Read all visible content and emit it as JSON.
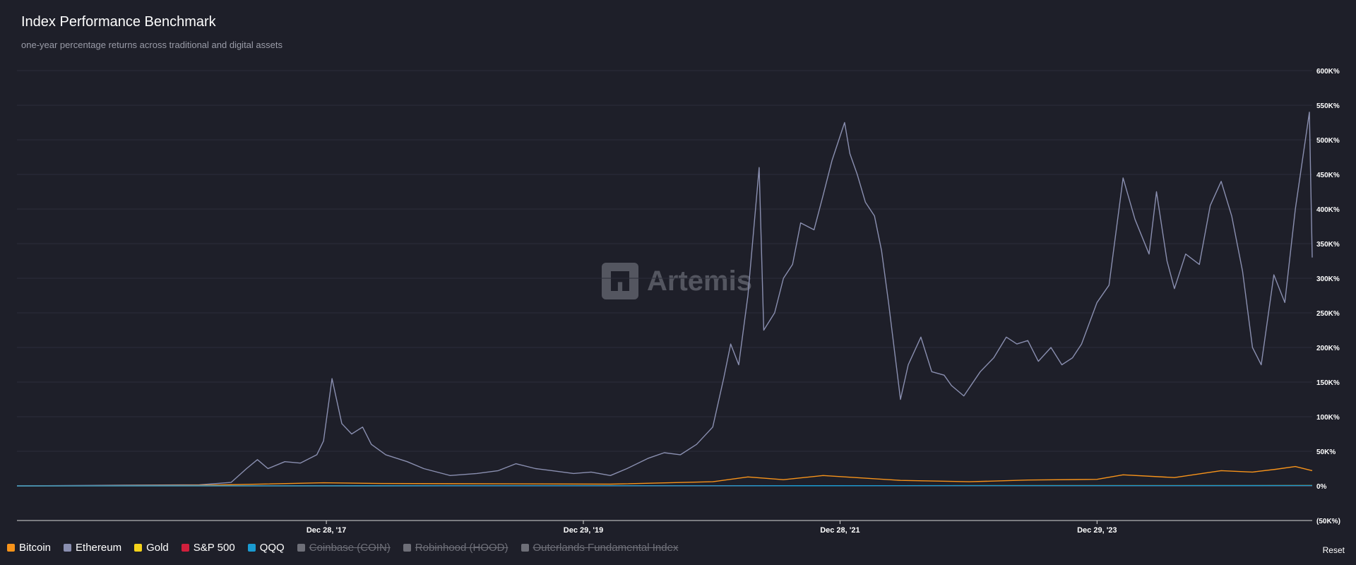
{
  "header": {
    "title": "Index Performance Benchmark",
    "subtitle": "one-year percentage returns across traditional and digital assets"
  },
  "watermark": {
    "text": "Artemis",
    "icon": "artemis-logo-icon"
  },
  "reset_label": "Reset",
  "legend": [
    {
      "label": "Bitcoin",
      "color": "#f7931a",
      "enabled": true
    },
    {
      "label": "Ethereum",
      "color": "#8a8fb0",
      "enabled": true
    },
    {
      "label": "Gold",
      "color": "#f5d31a",
      "enabled": true
    },
    {
      "label": "S&P 500",
      "color": "#d01f3c",
      "enabled": true
    },
    {
      "label": "QQQ",
      "color": "#1a9bd1",
      "enabled": true
    },
    {
      "label": "Coinbase (COIN)",
      "color": "#6e6f78",
      "enabled": false
    },
    {
      "label": "Robinhood (HOOD)",
      "color": "#6e6f78",
      "enabled": false
    },
    {
      "label": "Outerlands Fundamental Index",
      "color": "#6e6f78",
      "enabled": false
    }
  ],
  "chart_data": {
    "type": "line",
    "title": "Index Performance Benchmark",
    "subtitle": "one-year percentage returns across traditional and digital assets",
    "xlabel": "",
    "ylabel": "",
    "x_ticks": [
      "Dec 28, '17",
      "Dec 29, '19",
      "Dec 28, '21",
      "Dec 29, '23"
    ],
    "x_tick_dates": [
      "2017-12-28",
      "2019-12-29",
      "2021-12-28",
      "2023-12-29"
    ],
    "x_range": [
      "2015-08-01",
      "2025-09-01"
    ],
    "y_ticks": [
      "(50K%)",
      "0%",
      "50K%",
      "100K%",
      "150K%",
      "200K%",
      "250K%",
      "300K%",
      "350K%",
      "400K%",
      "450K%",
      "500K%",
      "550K%",
      "600K%"
    ],
    "ylim": [
      -50000,
      600000
    ],
    "grid": true,
    "legend_position": "bottom-left",
    "series": [
      {
        "name": "Ethereum",
        "color": "#8a8fb0",
        "x": [
          "2015-08-01",
          "2016-06-01",
          "2017-01-01",
          "2017-04-01",
          "2017-05-15",
          "2017-06-15",
          "2017-07-15",
          "2017-09-01",
          "2017-10-15",
          "2017-12-01",
          "2017-12-20",
          "2018-01-13",
          "2018-02-10",
          "2018-03-10",
          "2018-04-10",
          "2018-05-05",
          "2018-06-15",
          "2018-08-15",
          "2018-10-01",
          "2018-12-15",
          "2019-03-01",
          "2019-05-01",
          "2019-06-20",
          "2019-08-15",
          "2019-10-01",
          "2019-12-01",
          "2020-01-20",
          "2020-03-15",
          "2020-05-01",
          "2020-07-01",
          "2020-08-15",
          "2020-09-30",
          "2020-11-15",
          "2020-12-31",
          "2021-01-31",
          "2021-02-20",
          "2021-03-15",
          "2021-04-10",
          "2021-05-12",
          "2021-05-25",
          "2021-06-25",
          "2021-07-20",
          "2021-08-15",
          "2021-09-07",
          "2021-10-15",
          "2021-11-10",
          "2021-12-05",
          "2022-01-10",
          "2022-01-25",
          "2022-02-15",
          "2022-03-10",
          "2022-04-05",
          "2022-04-25",
          "2022-05-15",
          "2022-06-18",
          "2022-07-10",
          "2022-08-15",
          "2022-09-15",
          "2022-10-20",
          "2022-11-10",
          "2022-12-15",
          "2023-01-31",
          "2023-03-10",
          "2023-04-15",
          "2023-05-15",
          "2023-06-15",
          "2023-07-15",
          "2023-08-20",
          "2023-09-20",
          "2023-10-20",
          "2023-11-15",
          "2023-12-29",
          "2024-02-01",
          "2024-03-12",
          "2024-04-15",
          "2024-05-25",
          "2024-06-15",
          "2024-07-15",
          "2024-08-05",
          "2024-09-06",
          "2024-10-15",
          "2024-11-15",
          "2024-12-16",
          "2025-01-15",
          "2025-02-15",
          "2025-03-15",
          "2025-04-09",
          "2025-05-15",
          "2025-06-15",
          "2025-07-15",
          "2025-08-24",
          "2025-09-01"
        ],
        "values": [
          0,
          1000,
          1500,
          5000,
          25000,
          38000,
          25000,
          35000,
          33000,
          45000,
          65000,
          155000,
          90000,
          75000,
          85000,
          60000,
          45000,
          35000,
          25000,
          15000,
          18000,
          22000,
          32000,
          25000,
          22000,
          18000,
          20000,
          15000,
          25000,
          40000,
          48000,
          45000,
          60000,
          85000,
          155000,
          205000,
          175000,
          275000,
          460000,
          225000,
          250000,
          300000,
          320000,
          380000,
          370000,
          420000,
          470000,
          525000,
          480000,
          450000,
          410000,
          390000,
          340000,
          265000,
          125000,
          175000,
          215000,
          165000,
          160000,
          145000,
          130000,
          165000,
          185000,
          215000,
          205000,
          210000,
          180000,
          200000,
          175000,
          185000,
          205000,
          265000,
          290000,
          445000,
          385000,
          335000,
          425000,
          325000,
          285000,
          335000,
          320000,
          405000,
          440000,
          390000,
          310000,
          200000,
          175000,
          305000,
          265000,
          400000,
          540000,
          330000
        ]
      },
      {
        "name": "Bitcoin",
        "color": "#f7931a",
        "x": [
          "2015-08-01",
          "2017-01-01",
          "2017-12-20",
          "2018-06-01",
          "2019-06-01",
          "2020-03-15",
          "2020-12-31",
          "2021-04-10",
          "2021-07-20",
          "2021-11-10",
          "2022-06-18",
          "2022-12-31",
          "2023-06-15",
          "2023-12-29",
          "2024-03-12",
          "2024-08-05",
          "2024-12-16",
          "2025-03-15",
          "2025-05-20",
          "2025-07-15",
          "2025-09-01"
        ],
        "values": [
          0,
          800,
          4500,
          3500,
          3000,
          2500,
          6000,
          13000,
          9000,
          15000,
          8000,
          6000,
          8500,
          9500,
          16000,
          12000,
          22000,
          20000,
          24000,
          28000,
          22000
        ]
      },
      {
        "name": "Gold",
        "color": "#f5d31a",
        "x": [
          "2015-08-01",
          "2020-01-01",
          "2025-09-01"
        ],
        "values": [
          0,
          200,
          500
        ]
      },
      {
        "name": "S&P 500",
        "color": "#d01f3c",
        "x": [
          "2015-08-01",
          "2020-01-01",
          "2025-09-01"
        ],
        "values": [
          0,
          150,
          300
        ]
      },
      {
        "name": "QQQ",
        "color": "#1a9bd1",
        "x": [
          "2015-08-01",
          "2020-01-01",
          "2025-09-01"
        ],
        "values": [
          0,
          200,
          450
        ]
      }
    ]
  }
}
